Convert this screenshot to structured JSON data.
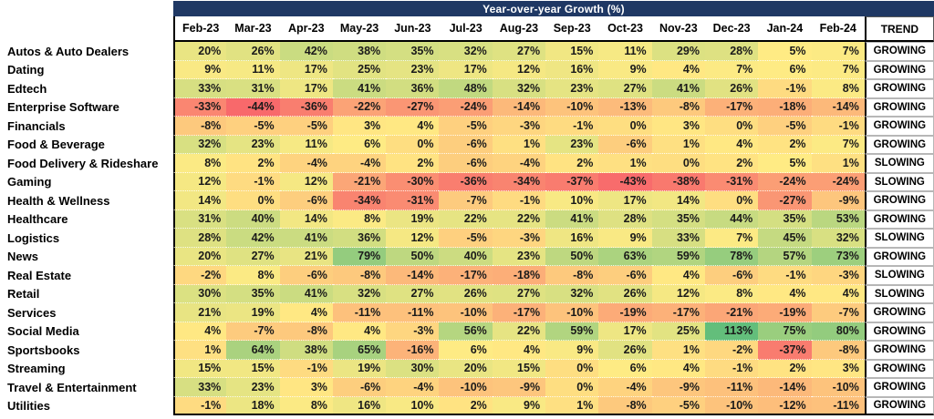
{
  "chart_data": {
    "type": "heatmap",
    "title": "Year-over-year Growth (%)",
    "unit": "%",
    "trend_header": "TREND",
    "columns": [
      "Feb-23",
      "Mar-23",
      "Apr-23",
      "May-23",
      "Jun-23",
      "Jul-23",
      "Aug-23",
      "Sep-23",
      "Oct-23",
      "Nov-23",
      "Dec-23",
      "Jan-24",
      "Feb-24"
    ],
    "rows": [
      {
        "label": "Autos & Auto Dealers",
        "values": [
          20,
          26,
          42,
          38,
          35,
          32,
          27,
          15,
          11,
          29,
          28,
          5,
          7
        ],
        "trend": "GROWING"
      },
      {
        "label": "Dating",
        "values": [
          9,
          11,
          17,
          25,
          23,
          17,
          12,
          16,
          9,
          4,
          7,
          6,
          7
        ],
        "trend": "GROWING"
      },
      {
        "label": "Edtech",
        "values": [
          33,
          31,
          17,
          41,
          36,
          48,
          32,
          23,
          27,
          41,
          26,
          -1,
          8
        ],
        "trend": "GROWING"
      },
      {
        "label": "Enterprise Software",
        "values": [
          -33,
          -44,
          -36,
          -22,
          -27,
          -24,
          -14,
          -10,
          -13,
          -8,
          -17,
          -18,
          -14
        ],
        "trend": "GROWING"
      },
      {
        "label": "Financials",
        "values": [
          -8,
          -5,
          -5,
          3,
          4,
          -5,
          -3,
          -1,
          0,
          3,
          0,
          -5,
          -1
        ],
        "trend": "GROWING"
      },
      {
        "label": "Food & Beverage",
        "values": [
          32,
          23,
          11,
          6,
          0,
          -6,
          1,
          23,
          -6,
          1,
          4,
          2,
          7
        ],
        "trend": "GROWING"
      },
      {
        "label": "Food Delivery & Rideshare",
        "values": [
          8,
          2,
          -4,
          -4,
          2,
          -6,
          -4,
          2,
          1,
          0,
          2,
          5,
          1
        ],
        "trend": "SLOWING"
      },
      {
        "label": "Gaming",
        "values": [
          12,
          -1,
          12,
          -21,
          -30,
          -36,
          -34,
          -37,
          -43,
          -38,
          -31,
          -24,
          -24
        ],
        "trend": "SLOWING"
      },
      {
        "label": "Health & Wellness",
        "values": [
          14,
          0,
          -6,
          -34,
          -31,
          -7,
          -1,
          10,
          17,
          14,
          0,
          -27,
          -9
        ],
        "trend": "GROWING"
      },
      {
        "label": "Healthcare",
        "values": [
          31,
          40,
          14,
          8,
          19,
          22,
          22,
          41,
          28,
          35,
          44,
          35,
          53
        ],
        "trend": "GROWING"
      },
      {
        "label": "Logistics",
        "values": [
          28,
          42,
          41,
          36,
          12,
          -5,
          -3,
          16,
          9,
          33,
          7,
          45,
          32
        ],
        "trend": "SLOWING"
      },
      {
        "label": "News",
        "values": [
          20,
          27,
          21,
          79,
          50,
          40,
          23,
          50,
          63,
          59,
          78,
          57,
          73
        ],
        "trend": "GROWING"
      },
      {
        "label": "Real Estate",
        "values": [
          -2,
          8,
          -6,
          -8,
          -14,
          -17,
          -18,
          -8,
          -6,
          4,
          -6,
          -1,
          -3
        ],
        "trend": "SLOWING"
      },
      {
        "label": "Retail",
        "values": [
          30,
          35,
          41,
          32,
          27,
          26,
          27,
          32,
          26,
          12,
          8,
          4,
          4
        ],
        "trend": "SLOWING"
      },
      {
        "label": "Services",
        "values": [
          21,
          19,
          4,
          -11,
          -11,
          -10,
          -17,
          -10,
          -19,
          -17,
          -21,
          -19,
          -7
        ],
        "trend": "GROWING"
      },
      {
        "label": "Social Media",
        "values": [
          4,
          -7,
          -8,
          4,
          -3,
          56,
          22,
          59,
          17,
          25,
          113,
          75,
          80
        ],
        "trend": "GROWING"
      },
      {
        "label": "Sportsbooks",
        "values": [
          1,
          64,
          38,
          65,
          -16,
          6,
          4,
          9,
          26,
          1,
          -2,
          -37,
          -8
        ],
        "trend": "GROWING"
      },
      {
        "label": "Streaming",
        "values": [
          15,
          15,
          -1,
          19,
          30,
          20,
          15,
          0,
          6,
          4,
          -1,
          2,
          3
        ],
        "trend": "GROWING"
      },
      {
        "label": "Travel & Entertainment",
        "values": [
          33,
          23,
          3,
          -6,
          -4,
          -10,
          -9,
          0,
          -4,
          -9,
          -11,
          -14,
          -10
        ],
        "trend": "GROWING"
      },
      {
        "label": "Utilities",
        "values": [
          -1,
          18,
          8,
          16,
          10,
          2,
          9,
          1,
          -8,
          -5,
          -10,
          -12,
          -11
        ],
        "trend": "GROWING"
      }
    ],
    "color_scale": {
      "min_value": -44,
      "mid_value": 5,
      "max_value": 113,
      "min_color": "#F8696B",
      "mid_color": "#FFEB84",
      "max_color": "#63BE7B",
      "mid_rule": "median"
    },
    "title_band_color": "#1F3864",
    "title_text_color": "#FFFFFF",
    "legend_position": "none",
    "grid": "off"
  }
}
